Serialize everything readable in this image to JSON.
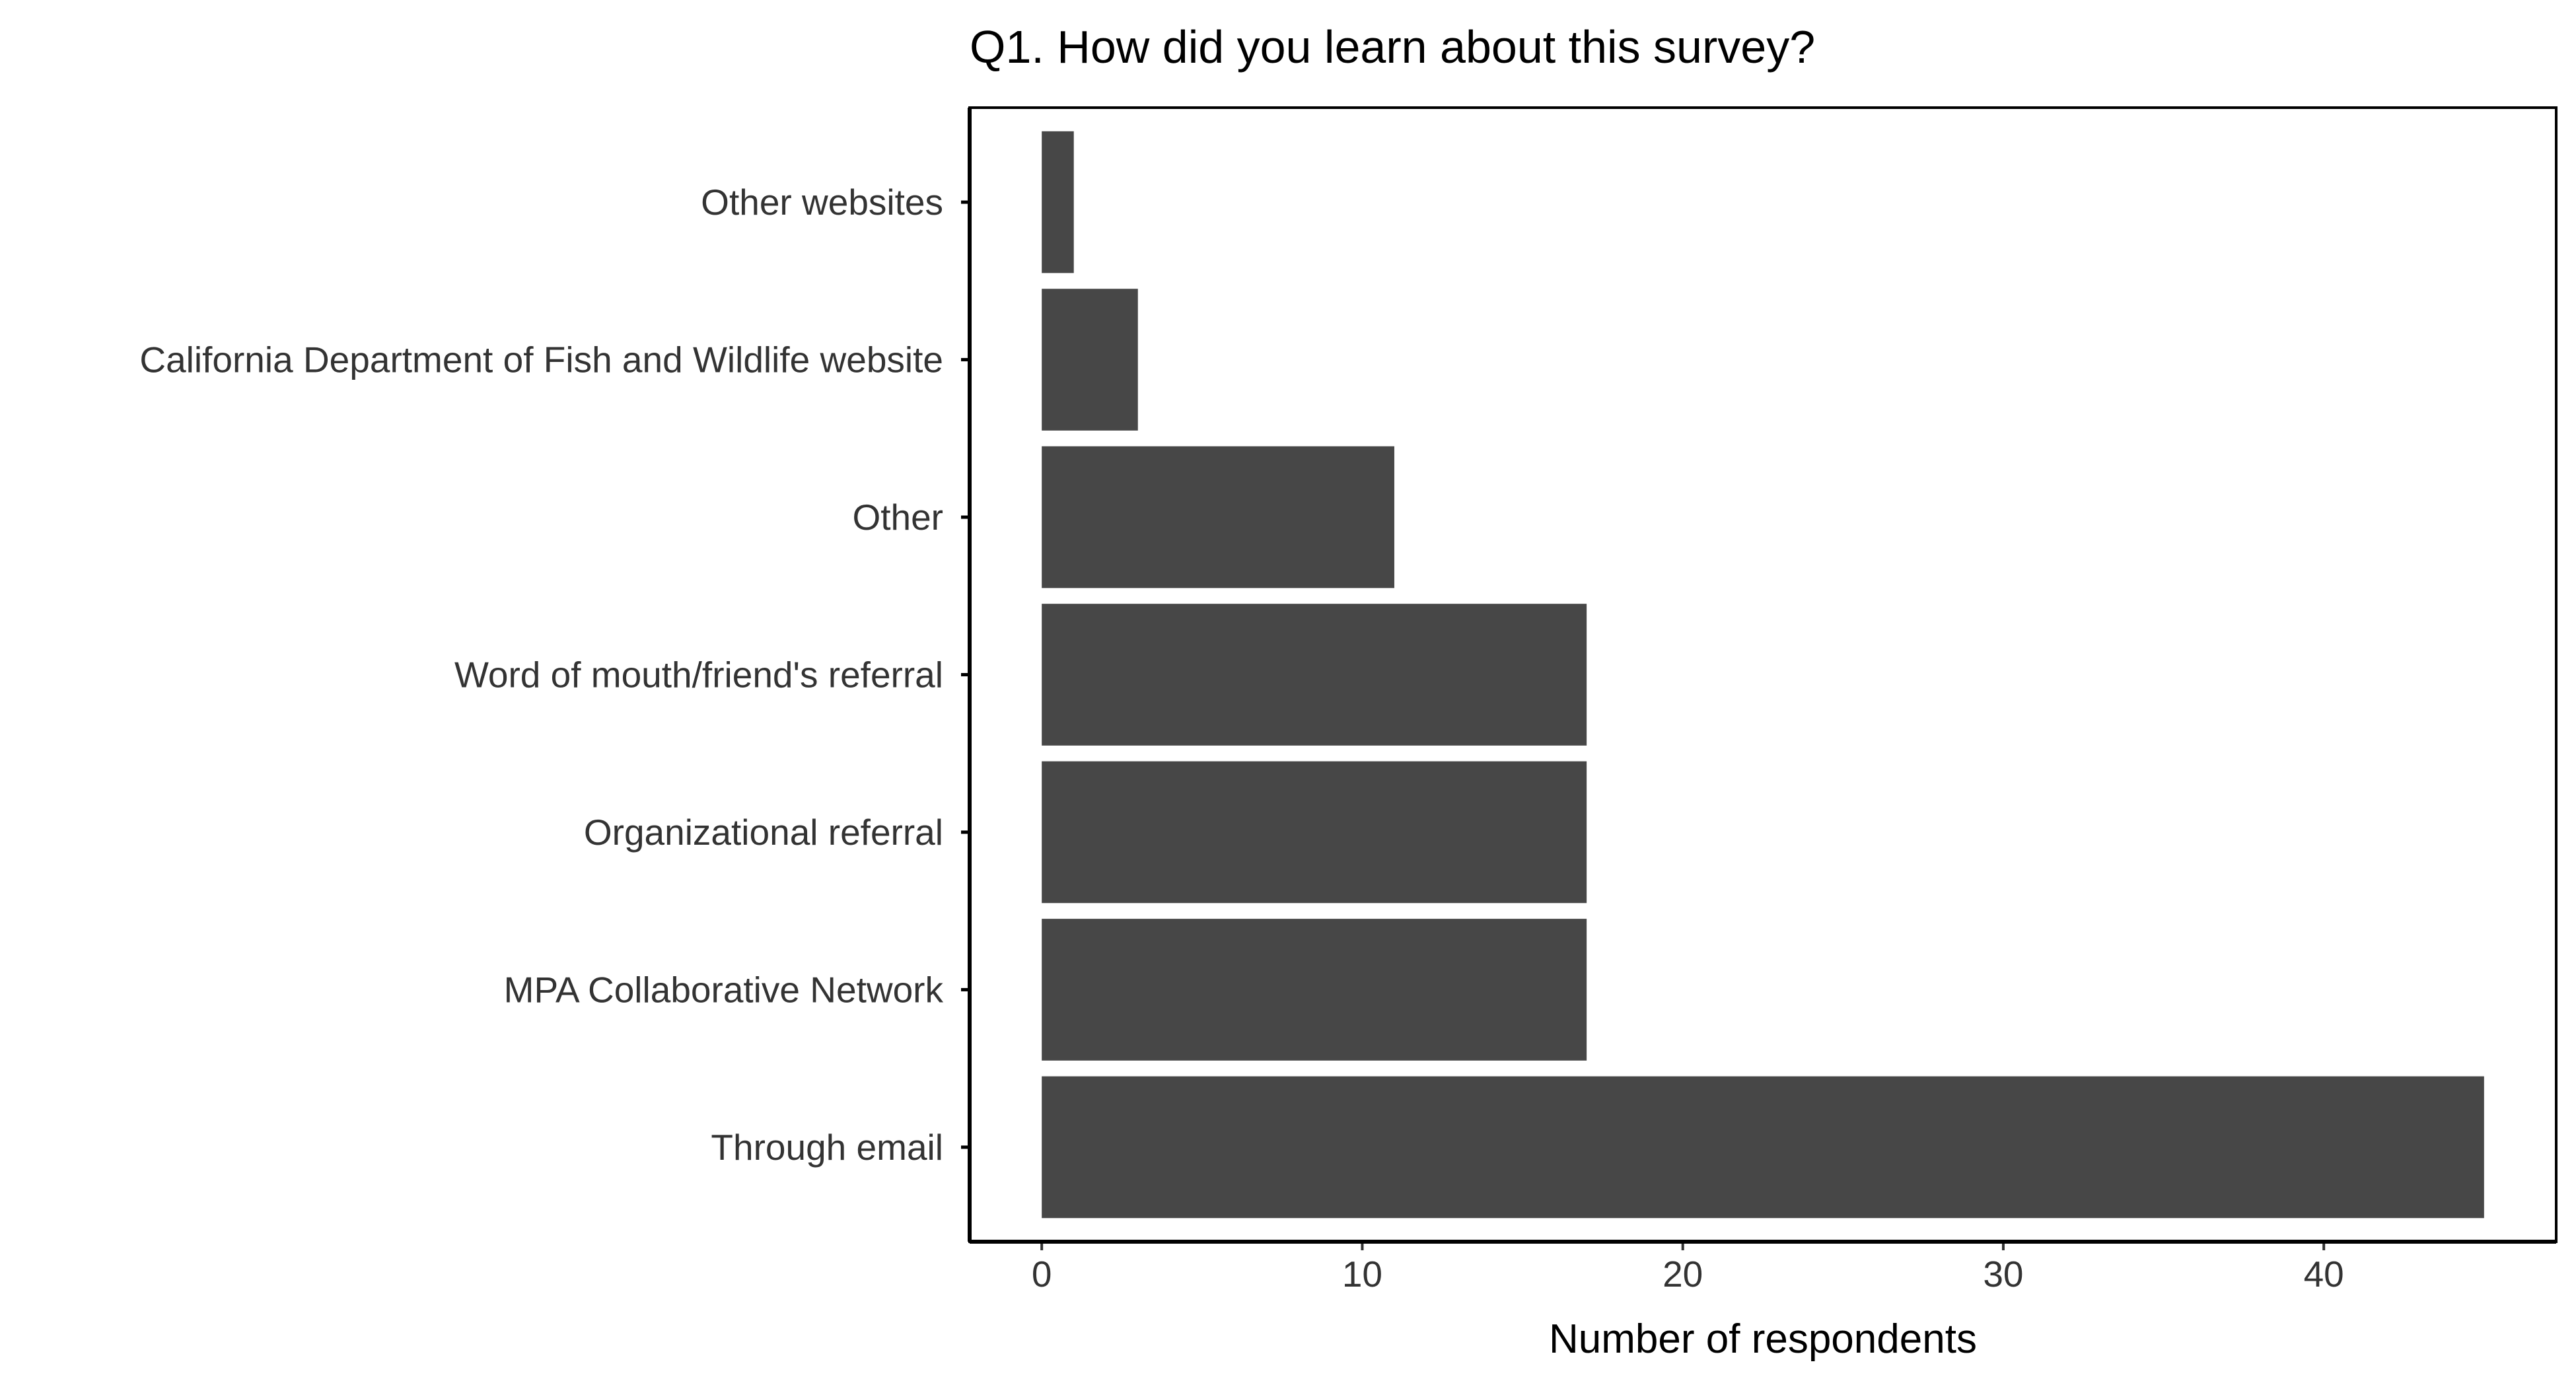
{
  "chart_data": {
    "type": "bar",
    "orientation": "horizontal",
    "title": "Q1. How did you learn about this survey?",
    "xlabel": "Number of respondents",
    "ylabel": "",
    "categories": [
      "Other websites",
      "California Department of Fish and Wildlife website",
      "Other",
      "Word of mouth/friend's referral",
      "Organizational referral",
      "MPA Collaborative Network",
      "Through email"
    ],
    "values": [
      1,
      3,
      11,
      17,
      17,
      17,
      45
    ],
    "xlim": [
      -2.25,
      47.25
    ],
    "xticks": [
      0,
      10,
      20,
      30,
      40
    ],
    "xtick_labels": [
      "0",
      "10",
      "20",
      "30",
      "40"
    ],
    "bar_color": "#474747",
    "grid": false,
    "legend": "none"
  }
}
